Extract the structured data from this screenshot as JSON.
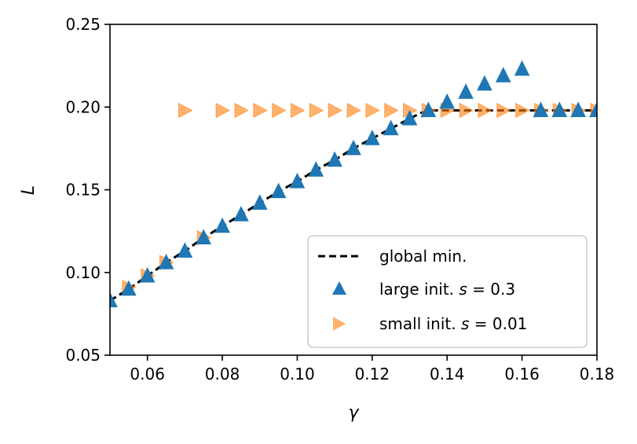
{
  "chart_data": {
    "type": "scatter",
    "title": "",
    "xlabel": "γ",
    "ylabel": "L",
    "xlim": [
      0.05,
      0.18
    ],
    "ylim": [
      0.05,
      0.25
    ],
    "xticks": [
      0.06,
      0.08,
      0.1,
      0.12,
      0.14,
      0.16,
      0.18
    ],
    "xtick_labels": [
      "0.06",
      "0.08",
      "0.10",
      "0.12",
      "0.14",
      "0.16",
      "0.18"
    ],
    "yticks": [
      0.05,
      0.1,
      0.15,
      0.2,
      0.25
    ],
    "ytick_labels": [
      "0.05",
      "0.10",
      "0.15",
      "0.20",
      "0.25"
    ],
    "grid": false,
    "legend_position": "lower-right",
    "series": [
      {
        "name": "global min.",
        "legend_label": "global min.",
        "kind": "dashed-line",
        "color": "#000000",
        "x": [
          0.05,
          0.055,
          0.06,
          0.065,
          0.07,
          0.075,
          0.08,
          0.085,
          0.09,
          0.095,
          0.1,
          0.105,
          0.11,
          0.115,
          0.12,
          0.125,
          0.13,
          0.133,
          0.136,
          0.14,
          0.15,
          0.16,
          0.17,
          0.18
        ],
        "y": [
          0.083,
          0.09,
          0.098,
          0.106,
          0.113,
          0.121,
          0.128,
          0.135,
          0.142,
          0.149,
          0.155,
          0.162,
          0.168,
          0.175,
          0.181,
          0.187,
          0.193,
          0.1965,
          0.198,
          0.198,
          0.198,
          0.198,
          0.198,
          0.198
        ]
      },
      {
        "name": "large init.",
        "legend_prefix": "large init. ",
        "legend_var": "s",
        "legend_value": " = 0.3",
        "kind": "triangle-up",
        "color": "#1f77b4",
        "x": [
          0.05,
          0.055,
          0.06,
          0.065,
          0.07,
          0.075,
          0.08,
          0.085,
          0.09,
          0.095,
          0.1,
          0.105,
          0.11,
          0.115,
          0.12,
          0.125,
          0.13,
          0.135,
          0.14,
          0.145,
          0.15,
          0.155,
          0.16,
          0.165,
          0.17,
          0.175,
          0.18
        ],
        "y": [
          0.083,
          0.09,
          0.098,
          0.106,
          0.113,
          0.121,
          0.128,
          0.135,
          0.142,
          0.149,
          0.155,
          0.162,
          0.168,
          0.175,
          0.181,
          0.187,
          0.193,
          0.198,
          0.203,
          0.209,
          0.214,
          0.219,
          0.223,
          0.198,
          0.198,
          0.198,
          0.198
        ]
      },
      {
        "name": "small init.",
        "legend_prefix": "small init. ",
        "legend_var": "s",
        "legend_value": " = 0.01",
        "kind": "triangle-right",
        "color": "#ff7f0e",
        "x": [
          0.055,
          0.06,
          0.065,
          0.07,
          0.075,
          0.08,
          0.085,
          0.09,
          0.095,
          0.1,
          0.105,
          0.11,
          0.115,
          0.12,
          0.125,
          0.13,
          0.135,
          0.14,
          0.145,
          0.15,
          0.155,
          0.16,
          0.165,
          0.17,
          0.175,
          0.18
        ],
        "y": [
          0.091,
          0.098,
          0.106,
          0.198,
          0.121,
          0.198,
          0.198,
          0.198,
          0.198,
          0.198,
          0.198,
          0.198,
          0.198,
          0.198,
          0.198,
          0.198,
          0.198,
          0.198,
          0.198,
          0.198,
          0.198,
          0.198,
          0.198,
          0.198,
          0.198,
          0.198
        ]
      }
    ]
  }
}
